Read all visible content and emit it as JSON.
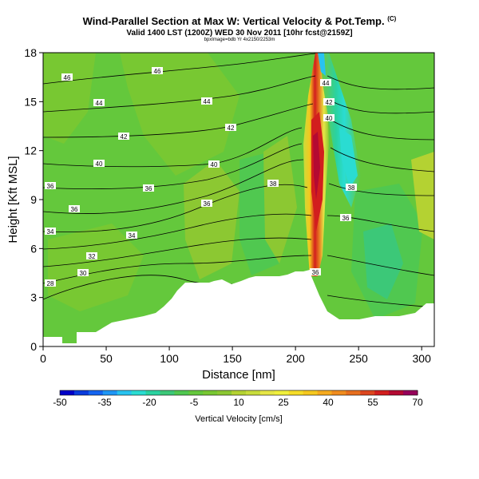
{
  "header": {
    "title": "Wind-Parallel Section at Max W: Vertical Velocity & Pot.Temp.",
    "copyright": "(C)",
    "subtitle": "Valid 1400 LST (1200Z) WED 30 Nov 2011 [10hr fcst@2159Z]",
    "subtitle2": "bpxImage=bdb Yr 4x2150/2253m"
  },
  "chart_data": {
    "type": "heatmap",
    "xlabel": "Distance [nm]",
    "ylabel": "Height [Kft MSL]",
    "xlim": [
      0,
      310
    ],
    "ylim": [
      0,
      18
    ],
    "x_ticks": [
      "0",
      "50",
      "100",
      "150",
      "200",
      "250",
      "300"
    ],
    "y_ticks": [
      "0",
      "3",
      "6",
      "9",
      "12",
      "15",
      "18"
    ],
    "colorbar": {
      "label": "Vertical Velocity [cm/s]",
      "ticks": [
        "-50",
        "-35",
        "-20",
        "-5",
        "10",
        "25",
        "40",
        "55",
        "70"
      ],
      "range": [
        -50,
        70
      ],
      "step": 5,
      "colors": [
        "#0000c8",
        "#0a3cdc",
        "#1464f0",
        "#1e96f5",
        "#28c3f0",
        "#2adcd2",
        "#2ad2a0",
        "#3cc878",
        "#50c850",
        "#64c83c",
        "#78c832",
        "#8cc832",
        "#b4d232",
        "#c8dc3c",
        "#e6e646",
        "#f0f03c",
        "#f5dc28",
        "#f5c81e",
        "#f5aa1e",
        "#f08c1e",
        "#e66e1e",
        "#dc461e",
        "#d21e1e",
        "#b40a32",
        "#96005a"
      ]
    },
    "isentrope_labels": [
      "28",
      "30",
      "32",
      "34",
      "36",
      "38",
      "40",
      "42",
      "44",
      "46"
    ],
    "vertical_velocity_max": 70
  }
}
